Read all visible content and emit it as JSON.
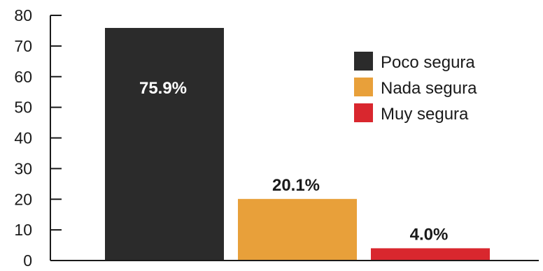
{
  "chart_data": {
    "type": "bar",
    "categories": [
      "Poco segura",
      "Nada segura",
      "Muy segura"
    ],
    "values": [
      75.9,
      20.1,
      4.0
    ],
    "data_labels": [
      "75.9%",
      "20.1%",
      "4.0%"
    ],
    "colors": [
      "#2b2b2b",
      "#e8a03a",
      "#d9272e"
    ],
    "data_label_colors": [
      "#ffffff",
      "#1a1a1a",
      "#1a1a1a"
    ],
    "data_label_position": [
      "inside",
      "above",
      "above"
    ],
    "ylim": [
      0,
      80
    ],
    "yticks": [
      0,
      10,
      20,
      30,
      40,
      50,
      60,
      70,
      80
    ],
    "grid": false,
    "legend_position": "top-right",
    "legend": [
      "Poco segura",
      "Nada segura",
      "Muy segura"
    ]
  }
}
